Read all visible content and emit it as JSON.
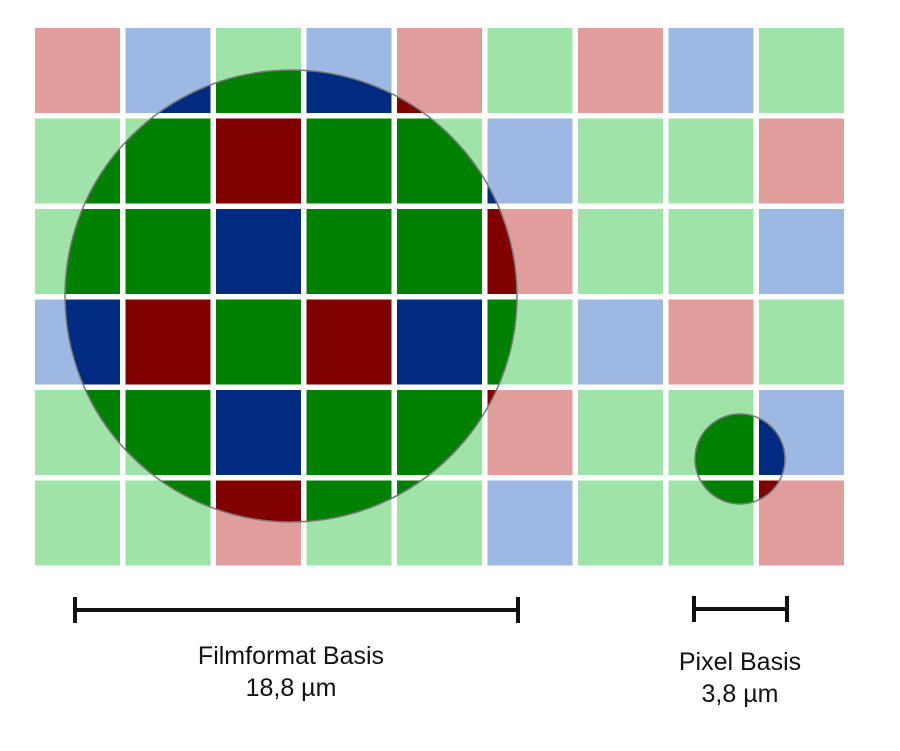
{
  "grid": [
    [
      "R",
      "B",
      "G",
      "B",
      "R",
      "G",
      "R",
      "B",
      "G"
    ],
    [
      "G",
      "G",
      "R",
      "G",
      "G",
      "B",
      "G",
      "G",
      "R"
    ],
    [
      "G",
      "G",
      "B",
      "G",
      "G",
      "R",
      "G",
      "G",
      "B"
    ],
    [
      "B",
      "R",
      "G",
      "R",
      "B",
      "G",
      "B",
      "R",
      "G"
    ],
    [
      "G",
      "G",
      "B",
      "G",
      "G",
      "R",
      "G",
      "G",
      "B"
    ],
    [
      "G",
      "G",
      "R",
      "G",
      "G",
      "B",
      "G",
      "G",
      "R"
    ]
  ],
  "colors": {
    "light": {
      "R": "#e19c9c",
      "G": "#9fe3a8",
      "B": "#9db8e3"
    },
    "dark": {
      "R": "#800000",
      "G": "#008000",
      "B": "#002b80"
    },
    "circle_stroke": "#777777",
    "bar": "#111111"
  },
  "labels": {
    "film_title": "Filmformat Basis",
    "film_value": "18,8 µm",
    "pixel_title": "Pixel Basis",
    "pixel_value": "3,8 µm"
  }
}
